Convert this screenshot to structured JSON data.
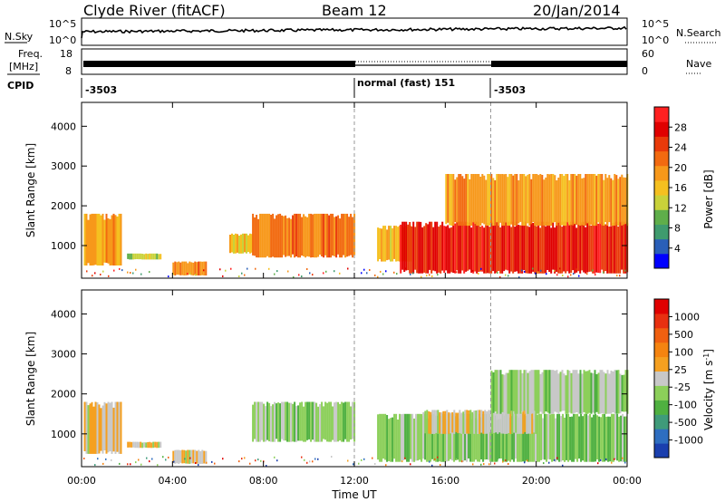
{
  "header": {
    "station": "Clyde River (fitACF)",
    "beam": "Beam 12",
    "date": "20/Jan/2014"
  },
  "aux_panels": {
    "nsky_label": "N.Sky",
    "nsky_ticks": [
      "10^5",
      "10^0"
    ],
    "nsearch_label": "N.Search",
    "nsearch_ticks": [
      "10^5",
      "10^0"
    ],
    "freq_label_1": "Freq.",
    "freq_label_2": "[MHz]",
    "freq_ticks": [
      "18",
      "8"
    ],
    "nave_label": "Nave",
    "nave_ticks": [
      "60",
      "0"
    ],
    "cpid_label": "CPID",
    "cpid_segments": [
      {
        "start": 0,
        "end": 12,
        "label": "-3503"
      },
      {
        "start": 12,
        "end": 18,
        "label": "normal (fast) 151"
      },
      {
        "start": 18,
        "end": 24,
        "label": "-3503"
      }
    ]
  },
  "colorbars": {
    "power": {
      "title": "Power [dB]",
      "labels": [
        "28",
        "24",
        "20",
        "16",
        "12",
        "8",
        "4"
      ],
      "colors": [
        "#0000ff",
        "#2a5fb8",
        "#3f9b6e",
        "#5fae4a",
        "#c9d23a",
        "#f5c020",
        "#f7981a",
        "#f26a10",
        "#e93a0a",
        "#e00000",
        "#ff2020"
      ]
    },
    "velocity": {
      "title": "Velocity [m s^-1]",
      "labels": [
        "1000",
        "500",
        "100",
        "25",
        "-25",
        "-100",
        "-500",
        "-1000"
      ],
      "colors": [
        "#1a3fae",
        "#2e6ec0",
        "#3f9b7a",
        "#4fb040",
        "#8ccf5a",
        "#c8c8c8",
        "#f5a020",
        "#f58410",
        "#f06010",
        "#e83010",
        "#e00000"
      ]
    }
  },
  "axes": {
    "ylabel": "Slant Range [km]",
    "xlabel": "Time UT",
    "xticks": [
      "00:00",
      "04:00",
      "08:00",
      "12:00",
      "16:00",
      "20:00",
      "00:00"
    ],
    "yticks": [
      "1000",
      "2000",
      "3000",
      "4000"
    ]
  },
  "chart_data": [
    {
      "type": "heatmap",
      "title": "Power",
      "xlabel": "Time UT",
      "ylabel": "Slant Range [km]",
      "xlim": [
        0,
        24
      ],
      "ylim": [
        180,
        4600
      ],
      "zlim": [
        0,
        30
      ],
      "regions": [
        {
          "t": [
            0.1,
            1.7
          ],
          "r": [
            500,
            1800
          ],
          "power": 18
        },
        {
          "t": [
            2.0,
            3.5
          ],
          "r": [
            650,
            800
          ],
          "power": 12
        },
        {
          "t": [
            4.0,
            5.5
          ],
          "r": [
            250,
            600
          ],
          "power": 20
        },
        {
          "t": [
            6.5,
            7.5
          ],
          "r": [
            800,
            1300
          ],
          "power": 14
        },
        {
          "t": [
            7.5,
            12.0
          ],
          "r": [
            700,
            1800
          ],
          "power": 20
        },
        {
          "t": [
            13.0,
            14.5
          ],
          "r": [
            600,
            1500
          ],
          "power": 16
        },
        {
          "t": [
            14.0,
            24.0
          ],
          "r": [
            300,
            1600
          ],
          "power": 26
        },
        {
          "t": [
            16.0,
            24.0
          ],
          "r": [
            1500,
            2800
          ],
          "power": 18
        }
      ]
    },
    {
      "type": "heatmap",
      "title": "Velocity",
      "xlabel": "Time UT",
      "ylabel": "Slant Range [km]",
      "xlim": [
        0,
        24
      ],
      "ylim": [
        180,
        4600
      ],
      "zlim": [
        -1000,
        1000
      ],
      "regions": [
        {
          "t": [
            0.1,
            1.7
          ],
          "r": [
            500,
            1800
          ],
          "velocity": 60
        },
        {
          "t": [
            2.0,
            3.5
          ],
          "r": [
            650,
            800
          ],
          "velocity": 30
        },
        {
          "t": [
            4.0,
            5.5
          ],
          "r": [
            250,
            600
          ],
          "velocity": 80
        },
        {
          "t": [
            7.5,
            12.0
          ],
          "r": [
            800,
            1800
          ],
          "velocity": -200
        },
        {
          "t": [
            13.0,
            24.0
          ],
          "r": [
            300,
            1500
          ],
          "velocity": -250
        },
        {
          "t": [
            15.0,
            20.0
          ],
          "r": [
            1000,
            1600
          ],
          "velocity": 0
        },
        {
          "t": [
            18.0,
            24.0
          ],
          "r": [
            1500,
            2600
          ],
          "velocity": -150
        }
      ]
    }
  ]
}
